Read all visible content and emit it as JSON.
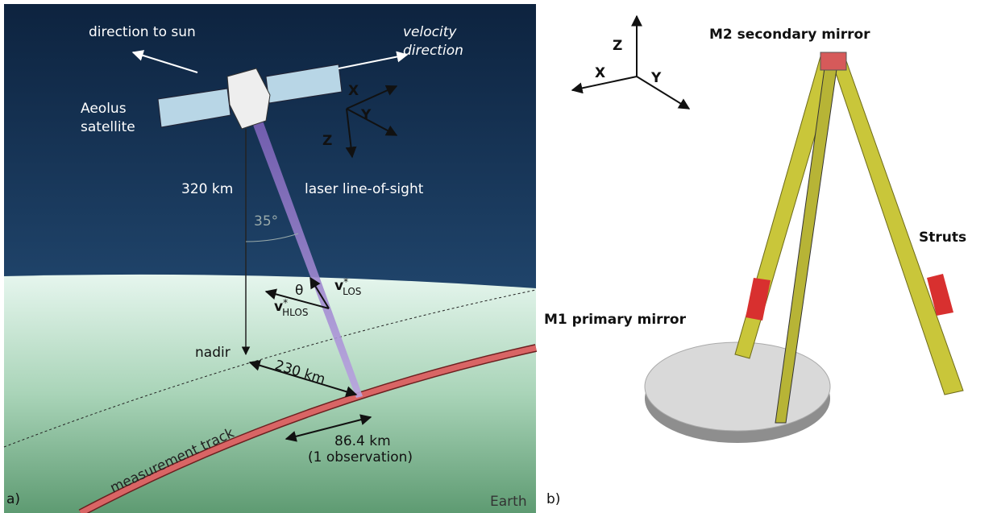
{
  "panel_a": {
    "label": "a)",
    "direction_to_sun": "direction to sun",
    "velocity_direction": [
      "velocity",
      "direction"
    ],
    "satellite": [
      "Aeolus",
      "satellite"
    ],
    "axes": {
      "x": "X",
      "y": "Y",
      "z": "Z"
    },
    "altitude": "320 km",
    "laser": "laser line-of-sight",
    "angle": "35°",
    "theta": "θ",
    "v_los": {
      "symbol": "v",
      "sup": "*",
      "sub": "LOS"
    },
    "v_hlos": {
      "symbol": "v",
      "sup": "*",
      "sub": "HLOS"
    },
    "nadir": "nadir",
    "offset": "230 km",
    "observation": [
      "86.4 km",
      "(1 observation)"
    ],
    "track": "measurement track",
    "earth": "Earth"
  },
  "panel_b": {
    "label": "b)",
    "axes": {
      "x": "X",
      "y": "Y",
      "z": "Z"
    },
    "m2": "M2 secondary mirror",
    "struts": "Struts",
    "m1": "M1 primary mirror"
  }
}
